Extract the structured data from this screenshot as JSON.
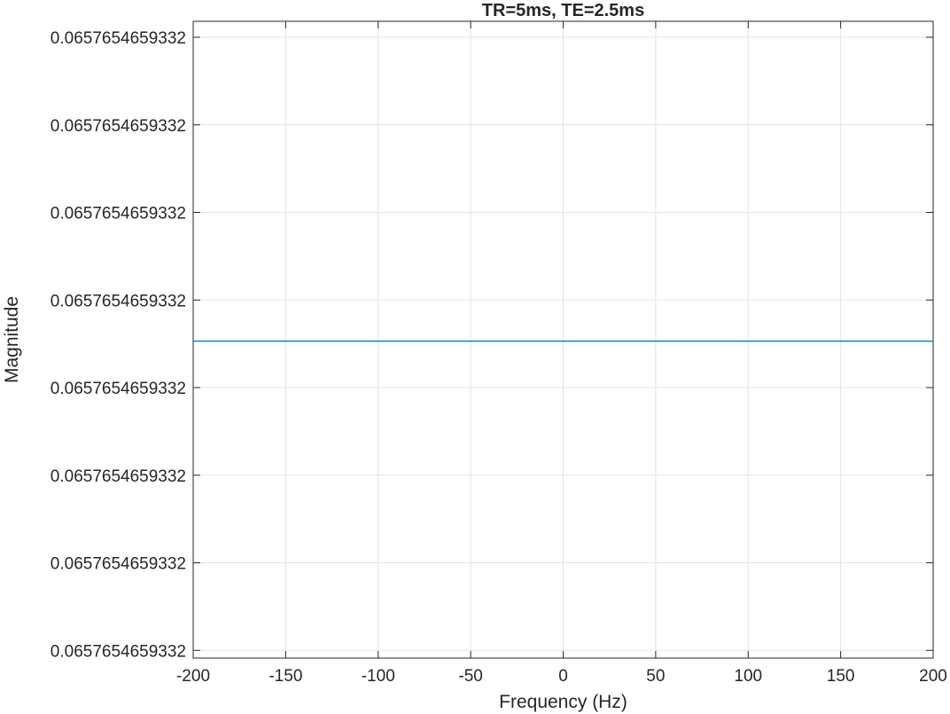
{
  "chart_data": {
    "type": "line",
    "title": "TR=5ms, TE=2.5ms",
    "xlabel": "Frequency (Hz)",
    "ylabel": "Magnitude",
    "xlim": [
      -200,
      200
    ],
    "xticks": [
      -200,
      -150,
      -100,
      -50,
      0,
      50,
      100,
      150,
      200
    ],
    "xtick_labels": [
      "-200",
      "-150",
      "-100",
      "-50",
      "0",
      "50",
      "100",
      "150",
      "200"
    ],
    "ytick_labels": [
      "0.0657654659332",
      "0.0657654659332",
      "0.0657654659332",
      "0.0657654659332",
      "0.0657654659332",
      "0.0657654659332",
      "0.0657654659332",
      "0.0657654659332"
    ],
    "ytick_labels_top_to_bottom": [
      "0.0657654659332",
      "0.0657654659332",
      "0.0657654659332",
      "0.0657654659332",
      "0.0657654659332",
      "0.0657654659332",
      "0.0657654659332",
      "0.0657654659332"
    ],
    "ylim": [
      0,
      7
    ],
    "grid": true,
    "series": [
      {
        "color": "#0072BD",
        "x": [
          -200,
          -150,
          -100,
          -50,
          0,
          50,
          100,
          150,
          200
        ],
        "y": [
          3.53,
          3.53,
          3.53,
          3.53,
          3.53,
          3.53,
          3.53,
          3.53,
          3.53
        ]
      }
    ],
    "colors": {
      "line": "#0072BD",
      "grid": "#e3e3e3",
      "axes": "#262626",
      "background": "#ffffff"
    }
  }
}
